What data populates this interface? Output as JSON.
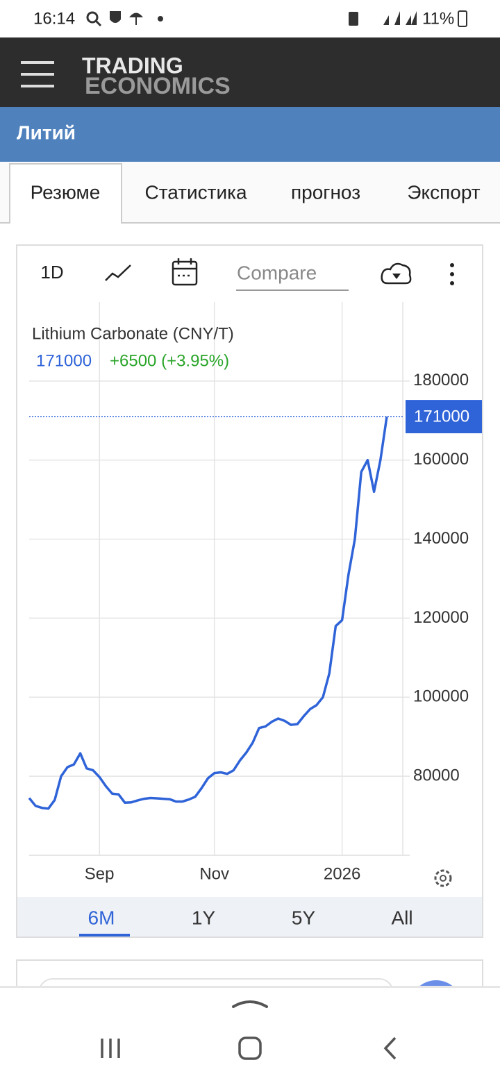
{
  "status_bar": {
    "time": "16:14",
    "battery": "11%"
  },
  "header": {
    "logo_line1": "TRADING",
    "logo_line2": "ECONOMICS"
  },
  "page_title": "Литий",
  "tabs": [
    "Резюме",
    "Статистика",
    "прогноз",
    "Экспорт"
  ],
  "toolbar": {
    "interval": "1D",
    "compare_placeholder": "Compare"
  },
  "chart_data": {
    "type": "line",
    "title": "Lithium Carbonate (CNY/T)",
    "change": "+6500 (+3.95%)",
    "color": "#2f63d8",
    "grid": true,
    "categories": [
      null,
      null,
      null,
      null,
      null,
      null,
      null,
      null,
      null,
      null,
      null,
      "Sep",
      null,
      null,
      null,
      null,
      null,
      null,
      null,
      null,
      null,
      null,
      null,
      null,
      null,
      null,
      null,
      null,
      null,
      "Nov",
      null,
      null,
      null,
      null,
      null,
      null,
      null,
      null,
      null,
      null,
      null,
      null,
      null,
      null,
      null,
      null,
      null,
      null,
      null,
      "2026",
      null,
      null,
      null,
      null,
      null,
      null,
      null
    ],
    "values": [
      74500,
      72500,
      72000,
      71800,
      74000,
      80000,
      82300,
      83000,
      85800,
      82000,
      81500,
      79800,
      77500,
      75600,
      75400,
      73300,
      73400,
      73900,
      74300,
      74500,
      74400,
      74300,
      74200,
      73600,
      73600,
      74100,
      74800,
      77000,
      79500,
      80800,
      81000,
      80600,
      81500,
      84000,
      86000,
      88500,
      92200,
      92600,
      93800,
      94600,
      94000,
      93000,
      93200,
      95200,
      97000,
      98000,
      100000,
      106000,
      118000,
      119500,
      131000,
      140000,
      157000,
      160000,
      152000,
      160000,
      171000
    ],
    "ylim": [
      60000,
      200000
    ],
    "yticks": [
      80000,
      100000,
      120000,
      140000,
      160000,
      180000
    ]
  },
  "ranges": [
    "6M",
    "1Y",
    "5Y",
    "All"
  ]
}
